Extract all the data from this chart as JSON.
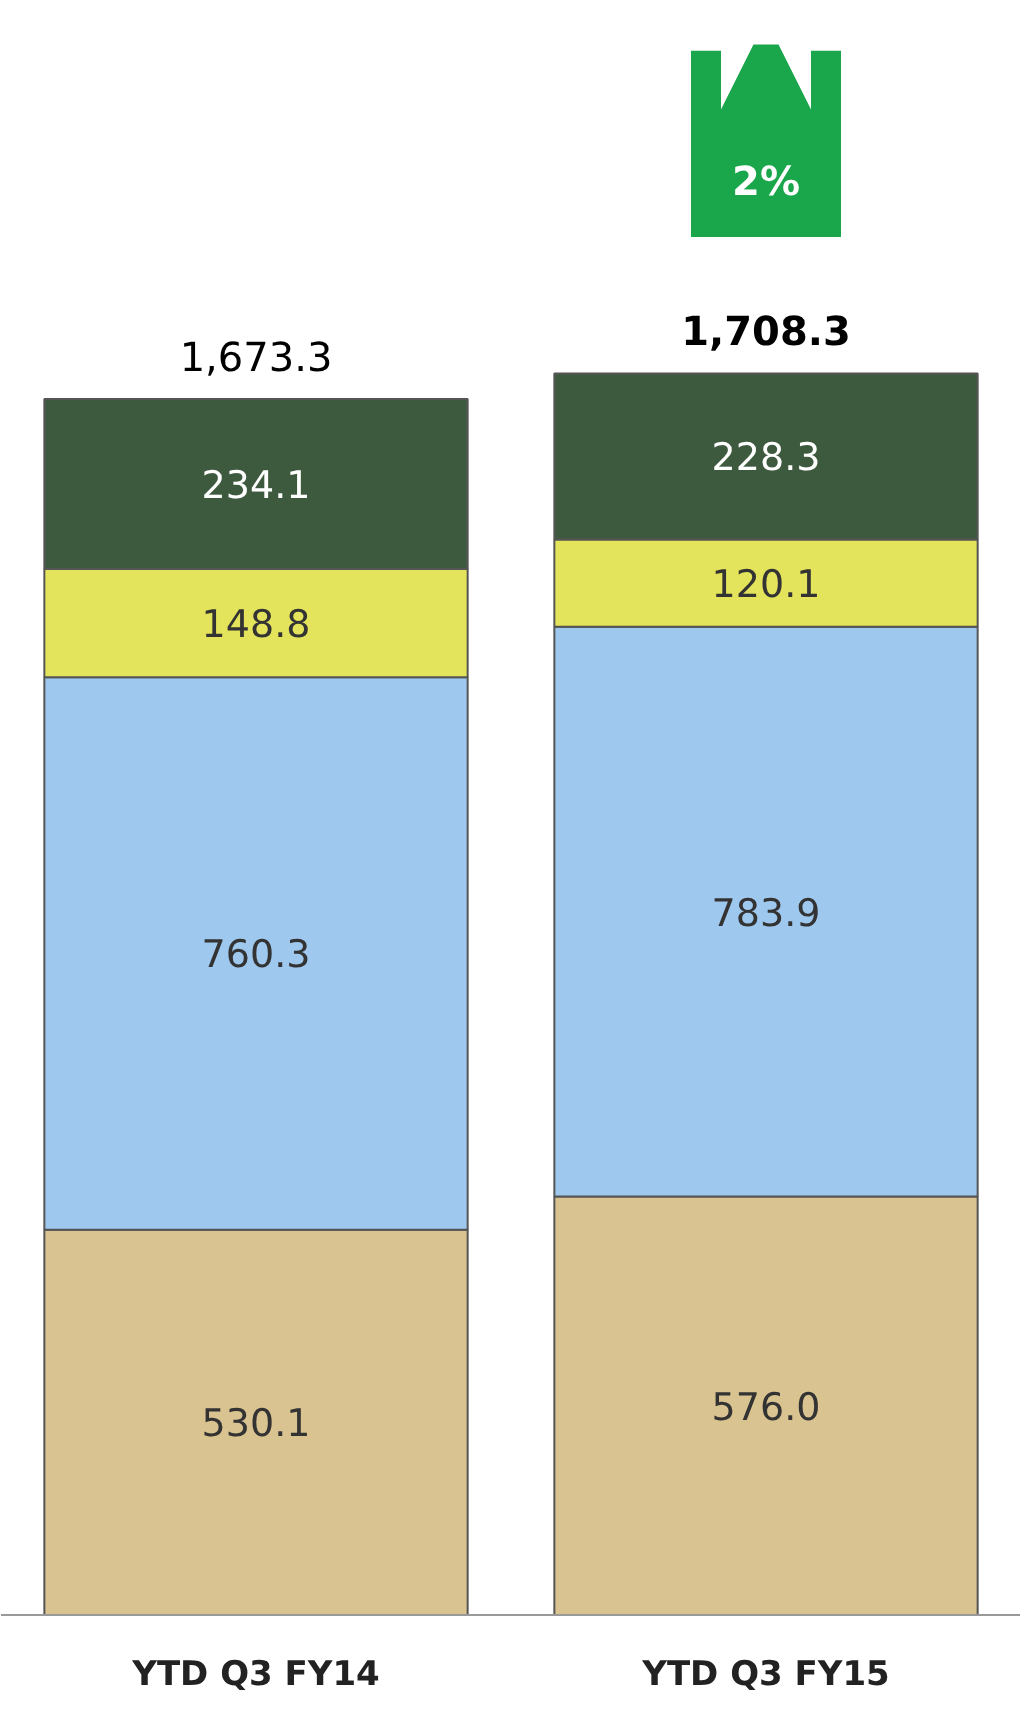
{
  "chart_data": {
    "type": "bar",
    "stacked": true,
    "categories": [
      "YTD Q3 FY14",
      "YTD Q3 FY15"
    ],
    "series": [
      {
        "color": "#d9c390",
        "values": [
          530.1,
          576.0
        ],
        "value_labels": [
          "530.1",
          "576.0"
        ]
      },
      {
        "color": "#9fc8ee",
        "values": [
          760.3,
          783.9
        ],
        "value_labels": [
          "760.3",
          "783.9"
        ]
      },
      {
        "color": "#e3e35c",
        "values": [
          148.8,
          120.1
        ],
        "value_labels": [
          "148.8",
          "120.1"
        ]
      },
      {
        "color": "#3e5a3e",
        "values": [
          234.1,
          228.3
        ],
        "value_labels": [
          "234.1",
          "228.3"
        ]
      }
    ],
    "totals": [
      "1,673.3",
      "1,708.3"
    ],
    "annotations": [
      "2%"
    ]
  }
}
